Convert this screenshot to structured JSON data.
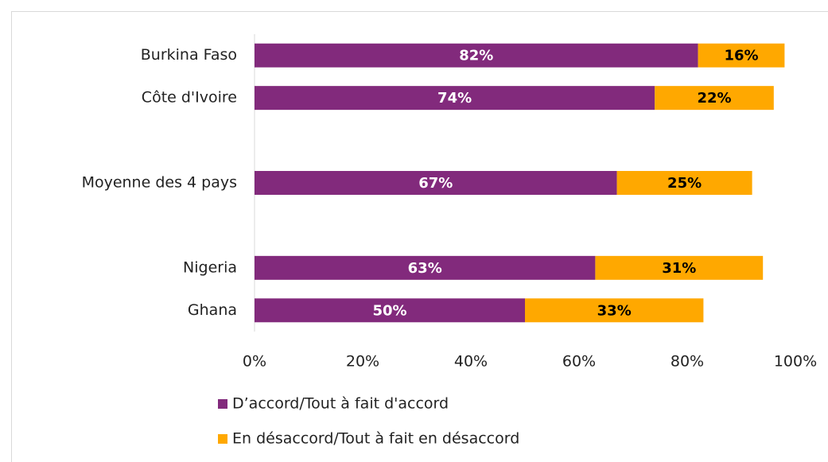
{
  "chart_data": {
    "type": "stacked-barh",
    "categories": [
      "Burkina Faso",
      "Côte d'Ivoire",
      null,
      "Moyenne des 4 pays",
      null,
      "Nigeria",
      "Ghana"
    ],
    "series": [
      {
        "name": "D’accord/Tout à fait d'accord",
        "color": "#822a7c",
        "values": [
          82,
          74,
          null,
          67,
          null,
          63,
          50
        ],
        "value_labels": [
          "82%",
          "74%",
          null,
          "67%",
          null,
          "63%",
          "50%"
        ]
      },
      {
        "name": "En désaccord/Tout à fait en désaccord",
        "color": "#ffa800",
        "values": [
          16,
          22,
          null,
          25,
          null,
          31,
          33
        ],
        "value_labels": [
          "16%",
          "22%",
          null,
          "25%",
          null,
          "31%",
          "33%"
        ]
      }
    ],
    "xlim": [
      0,
      100
    ],
    "xticks": [
      {
        "value": 0,
        "label": "0%"
      },
      {
        "value": 20,
        "label": "20%"
      },
      {
        "value": 40,
        "label": "40%"
      },
      {
        "value": 60,
        "label": "60%"
      },
      {
        "value": 80,
        "label": "80%"
      },
      {
        "value": 100,
        "label": "100%"
      }
    ]
  }
}
